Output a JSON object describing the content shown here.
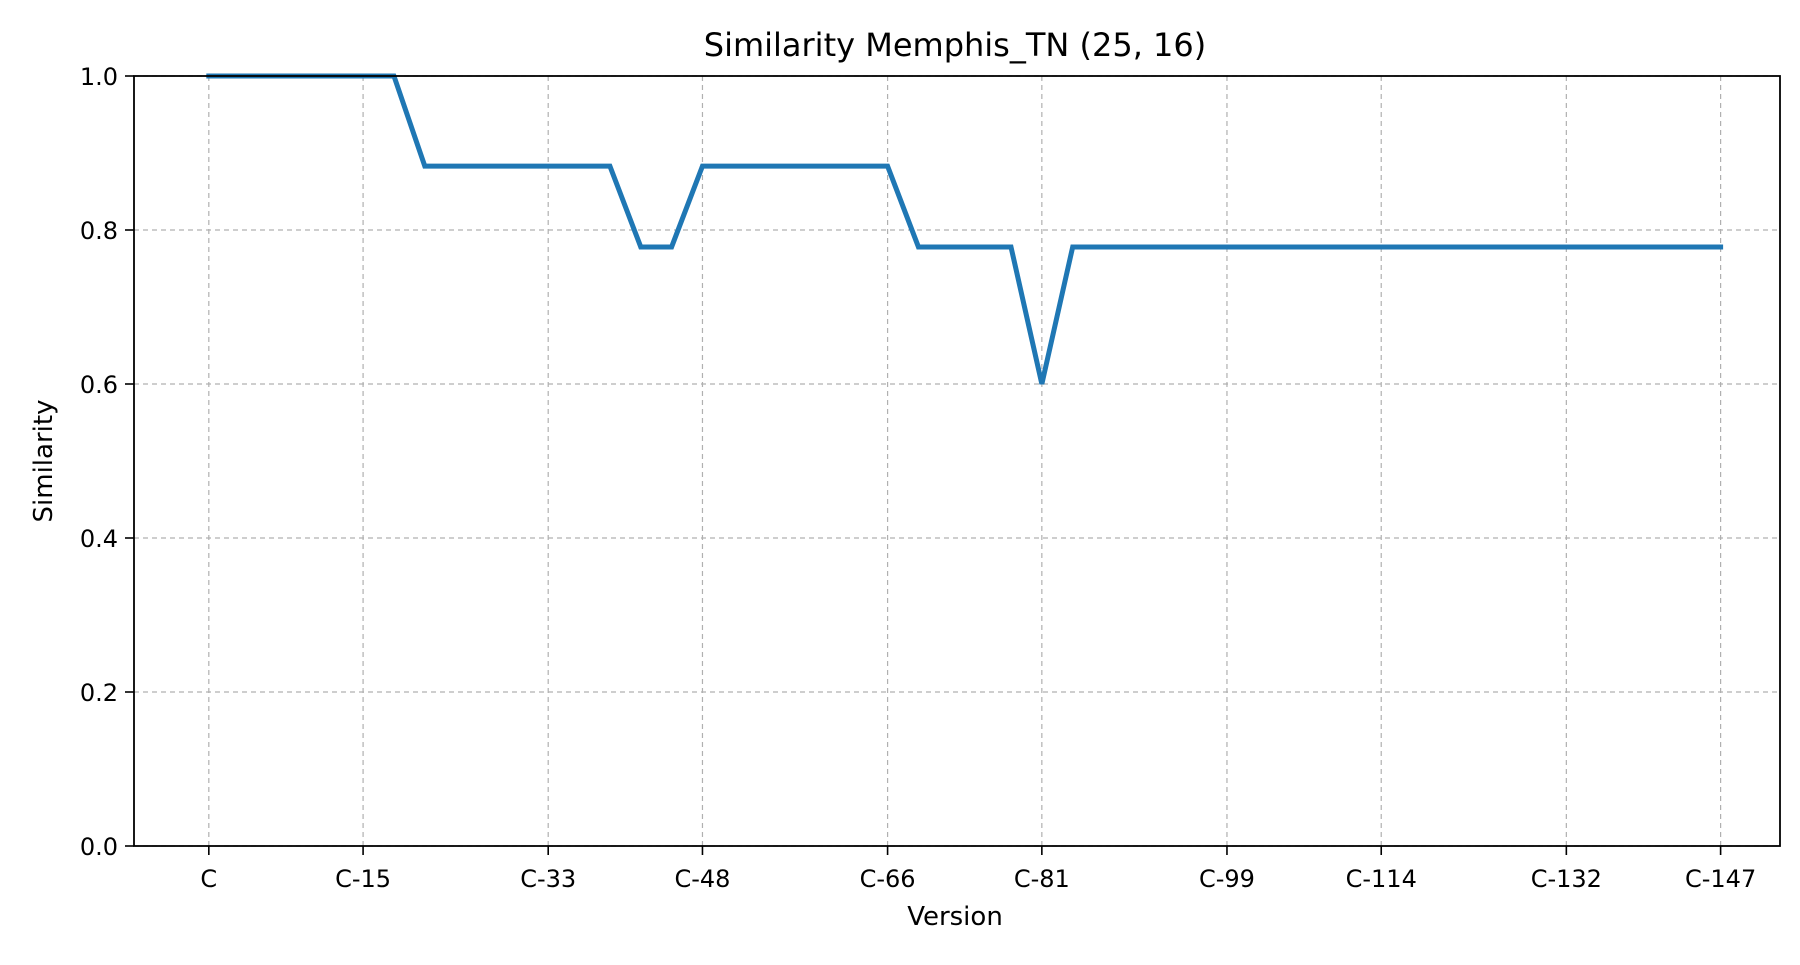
{
  "chart_data": {
    "type": "line",
    "title": "Similarity Memphis_TN (25, 16)",
    "xlabel": "Version",
    "ylabel": "Similarity",
    "ylim": [
      0,
      1
    ],
    "xlim": [
      -0.485,
      10.185
    ],
    "grid": true,
    "x_ticks": [
      {
        "label": "C",
        "x": 0
      },
      {
        "label": "C-15",
        "x": 1
      },
      {
        "label": "C-33",
        "x": 2.2
      },
      {
        "label": "C-48",
        "x": 3.2
      },
      {
        "label": "C-66",
        "x": 4.4
      },
      {
        "label": "C-81",
        "x": 5.4
      },
      {
        "label": "C-99",
        "x": 6.6
      },
      {
        "label": "C-114",
        "x": 7.6
      },
      {
        "label": "C-132",
        "x": 8.8
      },
      {
        "label": "C-147",
        "x": 9.8
      }
    ],
    "y_ticks": [
      0.0,
      0.2,
      0.4,
      0.6,
      0.8,
      1.0
    ],
    "y_tick_labels": [
      "0.0",
      "0.2",
      "0.4",
      "0.6",
      "0.8",
      "1.0"
    ],
    "series": [
      {
        "color": "#1f77b4",
        "points": [
          {
            "x": 0,
            "y": 1.0
          },
          {
            "x": 1.2,
            "y": 1.0
          },
          {
            "x": 1.4,
            "y": 0.883
          },
          {
            "x": 2.6,
            "y": 0.883
          },
          {
            "x": 2.8,
            "y": 0.778
          },
          {
            "x": 3.0,
            "y": 0.778
          },
          {
            "x": 3.2,
            "y": 0.883
          },
          {
            "x": 4.4,
            "y": 0.883
          },
          {
            "x": 4.6,
            "y": 0.778
          },
          {
            "x": 5.2,
            "y": 0.778
          },
          {
            "x": 5.4,
            "y": 0.6
          },
          {
            "x": 5.6,
            "y": 0.778
          },
          {
            "x": 9.8,
            "y": 0.778
          }
        ]
      }
    ]
  }
}
